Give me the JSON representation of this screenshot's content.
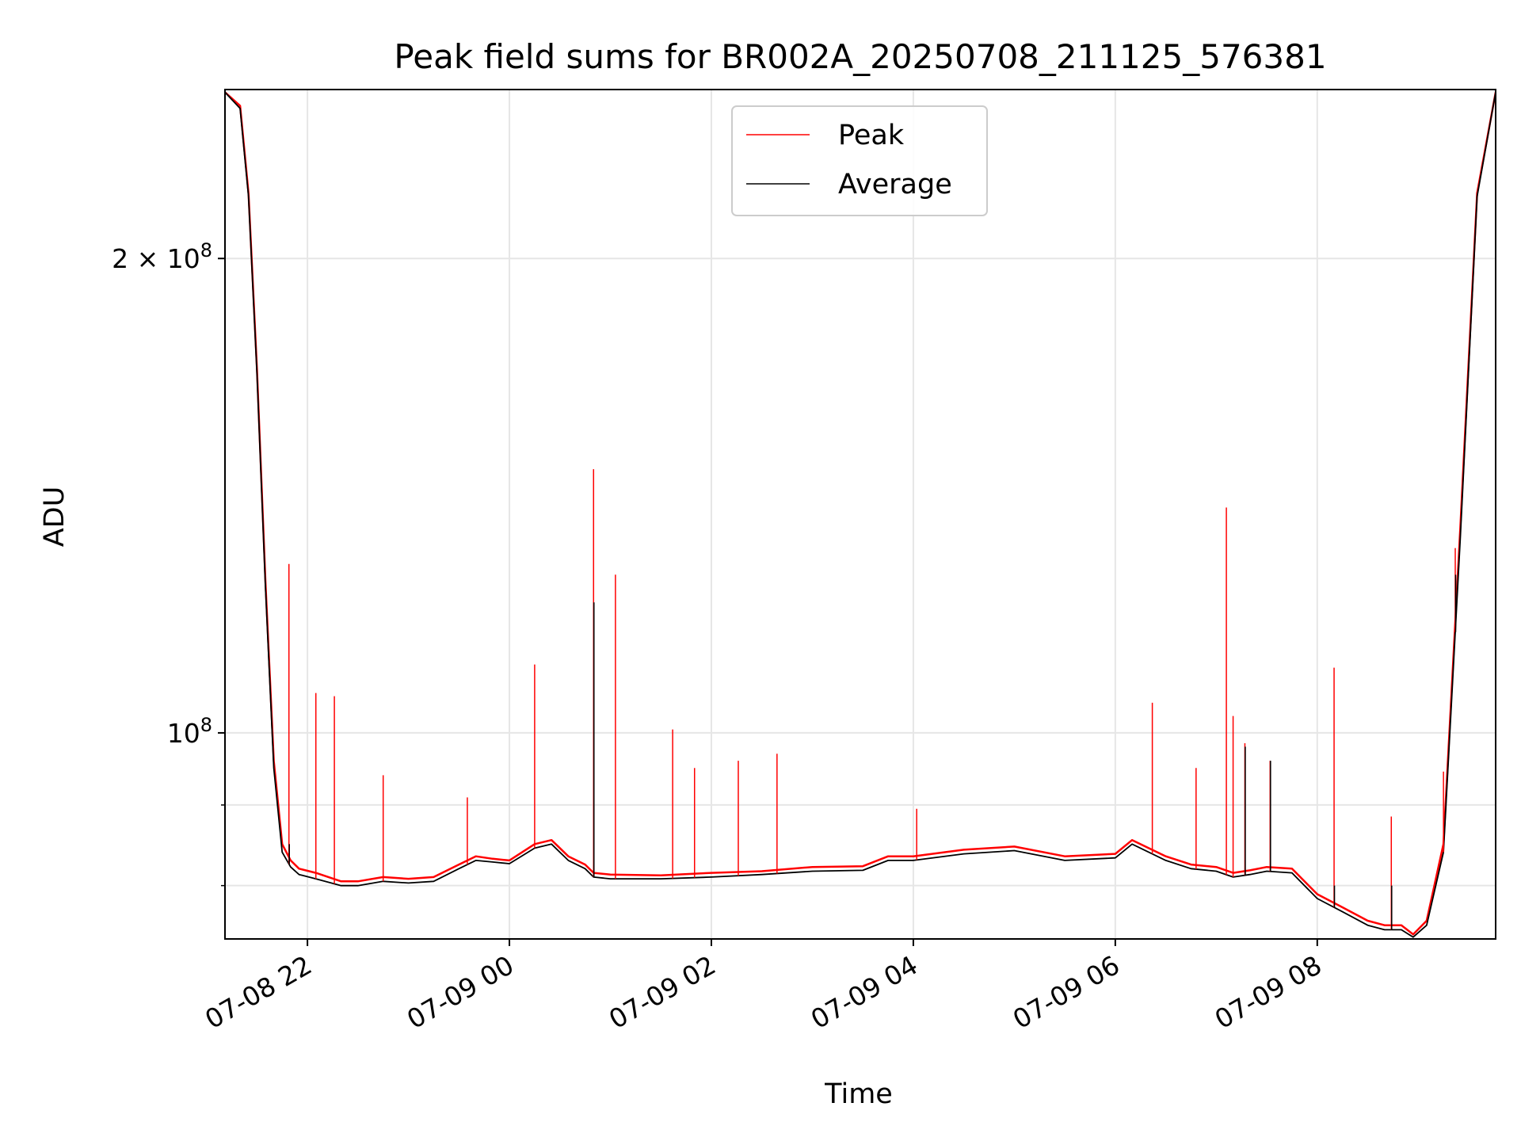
{
  "chart_data": {
    "type": "line",
    "title": "Peak field sums for BR002A_20250708_211125_576381",
    "xlabel": "Time",
    "ylabel": "ADU",
    "y_scale": "log",
    "xlim": [
      "2025-07-08T21:11",
      "2025-07-09T09:46"
    ],
    "ylim": [
      74000000,
      256000000
    ],
    "x_ticks": [
      "07-08 22",
      "07-09 00",
      "07-09 02",
      "07-09 04",
      "07-09 06",
      "07-09 08"
    ],
    "x_tick_times": [
      "2025-07-08T22:00",
      "2025-07-09T00:00",
      "2025-07-09T02:00",
      "2025-07-09T04:00",
      "2025-07-09T06:00",
      "2025-07-09T08:00"
    ],
    "x_tick_rotation": 30,
    "y_major_ticks": [
      {
        "value": 200000000,
        "mantissa": "2",
        "times": "×",
        "base": "10",
        "exp": "8"
      },
      {
        "value": 100000000,
        "mantissa": "",
        "times": "",
        "base": "10",
        "exp": "8"
      }
    ],
    "y_minor_ticks": [
      80000000,
      90000000
    ],
    "grid": true,
    "legend_position": "upper center",
    "series": [
      {
        "name": "Peak",
        "color": "#ff0000",
        "x": [
          "2025-07-08T21:11",
          "2025-07-08T21:20",
          "2025-07-08T21:25",
          "2025-07-08T21:30",
          "2025-07-08T21:35",
          "2025-07-08T21:40",
          "2025-07-08T21:45",
          "2025-07-08T21:50",
          "2025-07-08T21:55",
          "2025-07-08T22:05",
          "2025-07-08T22:20",
          "2025-07-08T22:30",
          "2025-07-08T22:45",
          "2025-07-08T23:00",
          "2025-07-08T23:15",
          "2025-07-08T23:30",
          "2025-07-08T23:40",
          "2025-07-08T23:50",
          "2025-07-09T00:00",
          "2025-07-09T00:15",
          "2025-07-09T00:25",
          "2025-07-09T00:35",
          "2025-07-09T00:45",
          "2025-07-09T00:50",
          "2025-07-09T01:00",
          "2025-07-09T01:30",
          "2025-07-09T02:00",
          "2025-07-09T02:30",
          "2025-07-09T03:00",
          "2025-07-09T03:30",
          "2025-07-09T03:45",
          "2025-07-09T04:00",
          "2025-07-09T04:30",
          "2025-07-09T05:00",
          "2025-07-09T05:30",
          "2025-07-09T06:00",
          "2025-07-09T06:10",
          "2025-07-09T06:30",
          "2025-07-09T06:45",
          "2025-07-09T07:00",
          "2025-07-09T07:10",
          "2025-07-09T07:20",
          "2025-07-09T07:30",
          "2025-07-09T07:45",
          "2025-07-09T08:00",
          "2025-07-09T08:15",
          "2025-07-09T08:30",
          "2025-07-09T08:40",
          "2025-07-09T08:50",
          "2025-07-09T08:57",
          "2025-07-09T09:05",
          "2025-07-09T09:15",
          "2025-07-09T09:25",
          "2025-07-09T09:35",
          "2025-07-09T09:46"
        ],
        "y": [
          255000000,
          250000000,
          220000000,
          170000000,
          125000000,
          96000000,
          85000000,
          83000000,
          82000000,
          81500000,
          80500000,
          80500000,
          81000000,
          80800000,
          81000000,
          82500000,
          83500000,
          83200000,
          83000000,
          85000000,
          85500000,
          83500000,
          82500000,
          81500000,
          81300000,
          81200000,
          81500000,
          81700000,
          82200000,
          82300000,
          83500000,
          83500000,
          84300000,
          84700000,
          83500000,
          83800000,
          85500000,
          83500000,
          82500000,
          82200000,
          81500000,
          81800000,
          82200000,
          82000000,
          79000000,
          77500000,
          76000000,
          75500000,
          75500000,
          74500000,
          76000000,
          85000000,
          135000000,
          220000000,
          255000000
        ]
      },
      {
        "name": "Average",
        "color": "#000000",
        "x": [
          "2025-07-08T21:11",
          "2025-07-08T21:20",
          "2025-07-08T21:25",
          "2025-07-08T21:30",
          "2025-07-08T21:35",
          "2025-07-08T21:40",
          "2025-07-08T21:45",
          "2025-07-08T21:50",
          "2025-07-08T21:55",
          "2025-07-08T22:05",
          "2025-07-08T22:20",
          "2025-07-08T22:30",
          "2025-07-08T22:45",
          "2025-07-08T23:00",
          "2025-07-08T23:15",
          "2025-07-08T23:30",
          "2025-07-08T23:40",
          "2025-07-08T23:50",
          "2025-07-09T00:00",
          "2025-07-09T00:15",
          "2025-07-09T00:25",
          "2025-07-09T00:35",
          "2025-07-09T00:45",
          "2025-07-09T00:50",
          "2025-07-09T01:00",
          "2025-07-09T01:30",
          "2025-07-09T02:00",
          "2025-07-09T02:30",
          "2025-07-09T03:00",
          "2025-07-09T03:30",
          "2025-07-09T03:45",
          "2025-07-09T04:00",
          "2025-07-09T04:30",
          "2025-07-09T05:00",
          "2025-07-09T05:30",
          "2025-07-09T06:00",
          "2025-07-09T06:10",
          "2025-07-09T06:30",
          "2025-07-09T06:45",
          "2025-07-09T07:00",
          "2025-07-09T07:10",
          "2025-07-09T07:20",
          "2025-07-09T07:30",
          "2025-07-09T07:45",
          "2025-07-09T08:00",
          "2025-07-09T08:15",
          "2025-07-09T08:30",
          "2025-07-09T08:40",
          "2025-07-09T08:50",
          "2025-07-09T08:57",
          "2025-07-09T09:05",
          "2025-07-09T09:15",
          "2025-07-09T09:25",
          "2025-07-09T09:35",
          "2025-07-09T09:46"
        ],
        "y": [
          255000000,
          249000000,
          219000000,
          169000000,
          124000000,
          95000000,
          84000000,
          82200000,
          81300000,
          80800000,
          80000000,
          80000000,
          80500000,
          80300000,
          80500000,
          82000000,
          83000000,
          82800000,
          82600000,
          84500000,
          85000000,
          83000000,
          82000000,
          81000000,
          80800000,
          80800000,
          81000000,
          81300000,
          81700000,
          81800000,
          83000000,
          83000000,
          83800000,
          84200000,
          83000000,
          83300000,
          85000000,
          83000000,
          82000000,
          81700000,
          81000000,
          81300000,
          81700000,
          81500000,
          78500000,
          77000000,
          75500000,
          75000000,
          75000000,
          74200000,
          75500000,
          84000000,
          133000000,
          219000000,
          255000000
        ]
      }
    ],
    "spikes": [
      {
        "x": "2025-07-08T21:49",
        "peak": 128000000,
        "average": 85000000
      },
      {
        "x": "2025-07-08T22:05",
        "peak": 106000000,
        "average": 82000000
      },
      {
        "x": "2025-07-08T22:16",
        "peak": 105500000,
        "average": 81000000
      },
      {
        "x": "2025-07-08T22:45",
        "peak": 94000000,
        "average": 80500000
      },
      {
        "x": "2025-07-08T23:35",
        "peak": 91000000,
        "average": 83000000
      },
      {
        "x": "2025-07-09T00:15",
        "peak": 110500000,
        "average": 84500000
      },
      {
        "x": "2025-07-09T00:50",
        "peak": 147000000,
        "average": 121000000
      },
      {
        "x": "2025-07-09T01:03",
        "peak": 126000000,
        "average": 81000000
      },
      {
        "x": "2025-07-09T01:37",
        "peak": 100500000,
        "average": 81000000
      },
      {
        "x": "2025-07-09T01:50",
        "peak": 95000000,
        "average": 81000000
      },
      {
        "x": "2025-07-09T02:16",
        "peak": 96000000,
        "average": 81200000
      },
      {
        "x": "2025-07-09T02:39",
        "peak": 97000000,
        "average": 81500000
      },
      {
        "x": "2025-07-09T04:02",
        "peak": 89500000,
        "average": 83000000
      },
      {
        "x": "2025-07-09T06:22",
        "peak": 104500000,
        "average": 83500000
      },
      {
        "x": "2025-07-09T06:48",
        "peak": 95000000,
        "average": 82000000
      },
      {
        "x": "2025-07-09T07:06",
        "peak": 139000000,
        "average": 77000000
      },
      {
        "x": "2025-07-09T07:10",
        "peak": 102500000,
        "average": 81000000
      },
      {
        "x": "2025-07-09T07:17",
        "peak": 98500000,
        "average": 98000000
      },
      {
        "x": "2025-07-09T07:32",
        "peak": 96000000,
        "average": 96000000
      },
      {
        "x": "2025-07-09T08:10",
        "peak": 110000000,
        "average": 80000000
      },
      {
        "x": "2025-07-09T08:44",
        "peak": 88500000,
        "average": 80000000
      },
      {
        "x": "2025-07-09T09:15",
        "peak": 94500000,
        "average": 83000000
      },
      {
        "x": "2025-07-09T09:22",
        "peak": 131000000,
        "average": 126000000
      }
    ]
  }
}
